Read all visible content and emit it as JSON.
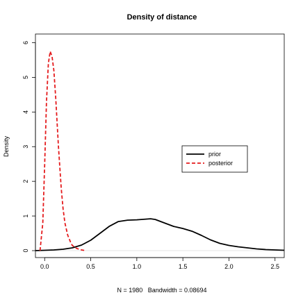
{
  "chart_data": {
    "type": "line",
    "title": "Density of distance",
    "xlabel": "N = 1980   Bandwidth = 0.08694",
    "ylabel": "Density",
    "xlim": [
      -0.1,
      2.6
    ],
    "ylim": [
      -0.2,
      6.25
    ],
    "x_ticks": [
      0.0,
      0.5,
      1.0,
      1.5,
      2.0,
      2.5
    ],
    "x_tick_labels": [
      "0.0",
      "0.5",
      "1.0",
      "1.5",
      "2.0",
      "2.5"
    ],
    "y_ticks": [
      0,
      1,
      2,
      3,
      4,
      5,
      6
    ],
    "y_tick_labels": [
      "0",
      "1",
      "2",
      "3",
      "4",
      "5",
      "6"
    ],
    "grid": false,
    "legend": "center-right",
    "series": [
      {
        "name": "prior",
        "color": "#000000",
        "dash": "solid",
        "x": [
          -0.1,
          0.0,
          0.1,
          0.2,
          0.3,
          0.4,
          0.5,
          0.6,
          0.7,
          0.8,
          0.9,
          1.0,
          1.1,
          1.15,
          1.2,
          1.3,
          1.4,
          1.5,
          1.6,
          1.7,
          1.8,
          1.9,
          2.0,
          2.1,
          2.2,
          2.3,
          2.4,
          2.5,
          2.6
        ],
        "y": [
          0.0,
          0.01,
          0.02,
          0.04,
          0.08,
          0.16,
          0.3,
          0.5,
          0.7,
          0.84,
          0.88,
          0.89,
          0.91,
          0.92,
          0.9,
          0.8,
          0.7,
          0.64,
          0.56,
          0.44,
          0.31,
          0.21,
          0.15,
          0.11,
          0.08,
          0.05,
          0.03,
          0.02,
          0.01
        ]
      },
      {
        "name": "posterior",
        "color": "#e41a1c",
        "dash": "dashed",
        "x": [
          -0.05,
          -0.02,
          0.0,
          0.02,
          0.04,
          0.06,
          0.08,
          0.1,
          0.12,
          0.15,
          0.18,
          0.2,
          0.22,
          0.25,
          0.28,
          0.3,
          0.35,
          0.4,
          0.45
        ],
        "y": [
          0.0,
          0.8,
          2.5,
          4.3,
          5.4,
          5.75,
          5.6,
          5.2,
          4.4,
          3.0,
          1.8,
          1.2,
          0.8,
          0.45,
          0.25,
          0.15,
          0.06,
          0.02,
          0.0
        ]
      }
    ]
  }
}
